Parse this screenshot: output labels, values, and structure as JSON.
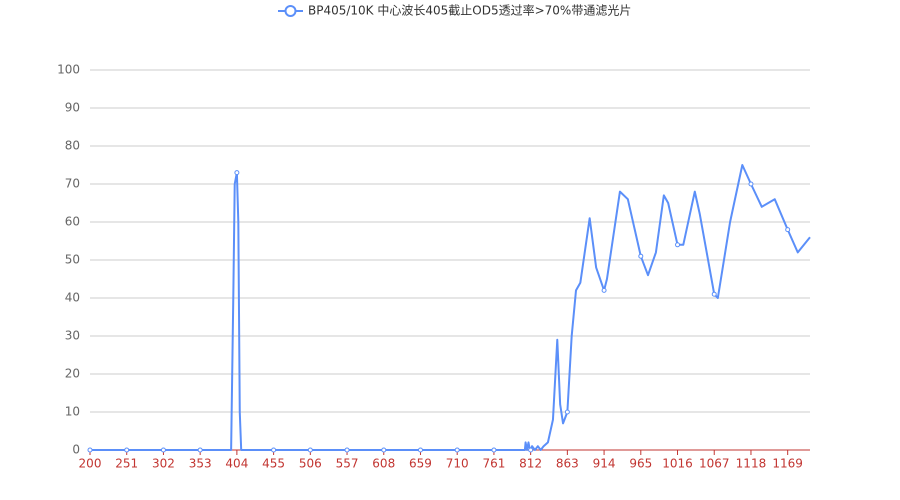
{
  "chart_data": {
    "type": "line",
    "series": [
      {
        "name": "BP405/10K 中心波长405截止OD5透过率>70%带通滤光片",
        "color": "#5b8ff9",
        "x": [
          200,
          251,
          302,
          353,
          396,
          399,
          401,
          404,
          406,
          408,
          410,
          455,
          506,
          557,
          608,
          659,
          710,
          761,
          804,
          805,
          807,
          809,
          811,
          812,
          814,
          818,
          822,
          826,
          830,
          836,
          843,
          849,
          853,
          857,
          863,
          869,
          875,
          881,
          894,
          903,
          914,
          918,
          936,
          947,
          965,
          975,
          986,
          997,
          1003,
          1016,
          1024,
          1040,
          1047,
          1067,
          1072,
          1089,
          1106,
          1118,
          1133,
          1151,
          1169,
          1183,
          1200
        ],
        "values": [
          0,
          0,
          0,
          0,
          0,
          40,
          70,
          73,
          60,
          10,
          0,
          0,
          0,
          0,
          0,
          0,
          0,
          0,
          0,
          2,
          0,
          2,
          0,
          0,
          1,
          0,
          1,
          0,
          1,
          2,
          8,
          29,
          12,
          7,
          10,
          30,
          42,
          44,
          61,
          48,
          42,
          45,
          68,
          66,
          51,
          46,
          52,
          67,
          65,
          54,
          54,
          68,
          62,
          41,
          40,
          60,
          75,
          70,
          64,
          66,
          58,
          52,
          56
        ]
      }
    ],
    "xlim": [
      200,
      1200
    ],
    "xticks": [
      200,
      251,
      302,
      353,
      404,
      455,
      506,
      557,
      608,
      659,
      710,
      761,
      812,
      863,
      914,
      965,
      1016,
      1067,
      1118,
      1169
    ],
    "ylim": [
      0,
      100
    ],
    "yticks": [
      0,
      10,
      20,
      30,
      40,
      50,
      60,
      70,
      80,
      90,
      100
    ],
    "grid": true
  }
}
